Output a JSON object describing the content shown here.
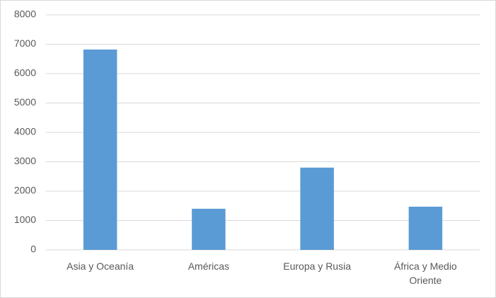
{
  "chart_data": {
    "type": "bar",
    "categories": [
      "Asia y Oceanía",
      "Américas",
      "Europa y Rusia",
      "África y Medio Oriente"
    ],
    "values": [
      6820,
      1400,
      2800,
      1470
    ],
    "color": "#5b9bd5",
    "ylim": [
      0,
      8000
    ],
    "yticks": [
      0,
      1000,
      2000,
      3000,
      4000,
      5000,
      6000,
      7000,
      8000
    ],
    "grid": true
  }
}
